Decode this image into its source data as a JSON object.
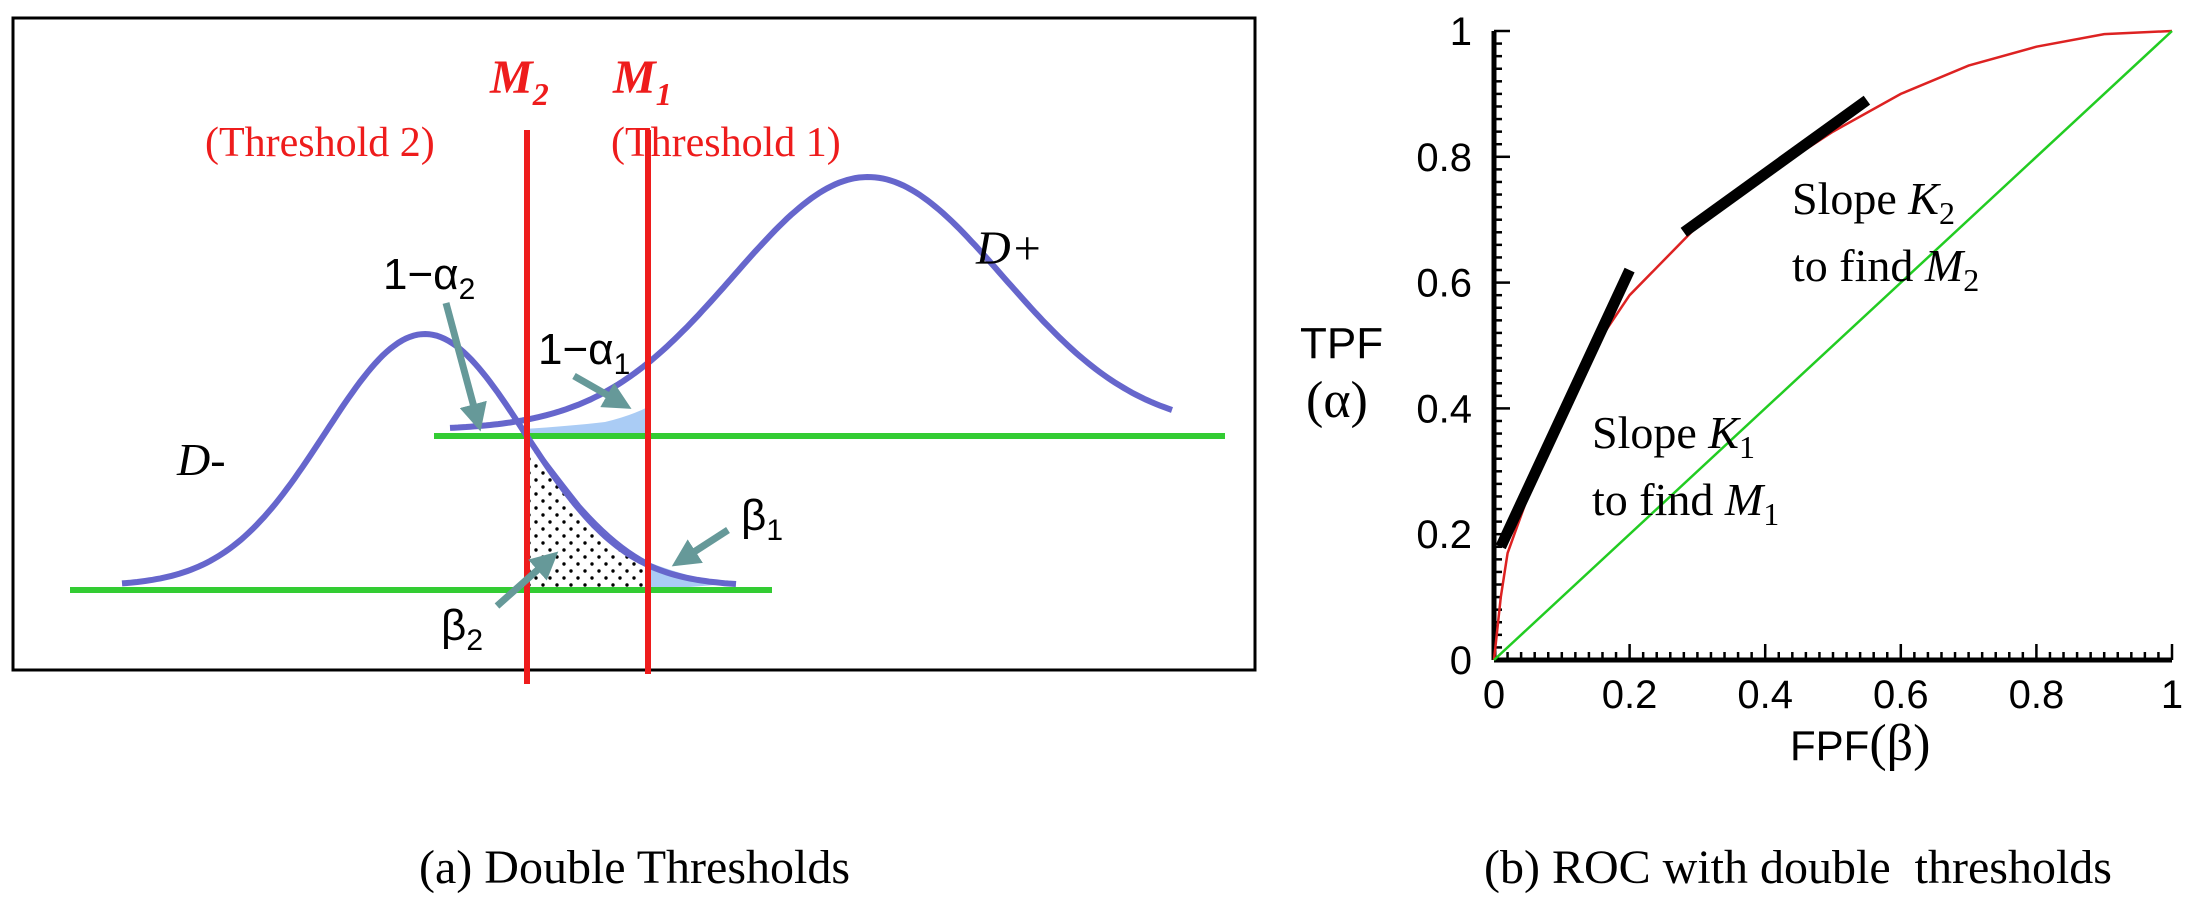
{
  "colors": {
    "curve": "#6666cc",
    "baseline": "#33cc33",
    "threshold": "#ee1c1c",
    "arrow": "#669999",
    "shade": "#aaccf5",
    "roc": "#dd2222",
    "diag": "#22cc22"
  },
  "panel_a": {
    "m2_main": "M",
    "m2_sub": "2",
    "m1_main": "M",
    "m1_sub": "1",
    "threshold2": "(Threshold 2)",
    "threshold1": "(Threshold 1)",
    "d_plus": "D+",
    "d_minus": "D-",
    "alpha2_prefix": "1−α",
    "alpha2_sub": "2",
    "alpha1_prefix": "1−α",
    "alpha1_sub": "1",
    "beta1_main": "β",
    "beta1_sub": "1",
    "beta2_main": "β",
    "beta2_sub": "2",
    "caption": "(a) Double Thresholds"
  },
  "panel_b": {
    "ylabel_line1": "TPF",
    "ylabel_line2": "(α)",
    "xlabel_a": "FPF",
    "xlabel_b": "(β)",
    "slope1_a": "Slope ",
    "slope1_k": "K",
    "slope1_sub": "1",
    "slope1_b": "to find ",
    "slope1_m": "M",
    "slope1_msub": "1",
    "slope2_a": "Slope ",
    "slope2_k": "K",
    "slope2_sub": "2",
    "slope2_b": "to find ",
    "slope2_m": "M",
    "slope2_msub": "2",
    "caption": "(b) ROC with double  thresholds"
  },
  "chart_data": {
    "type": "line",
    "xlabel": "FPF(β)",
    "ylabel": "TPF (α)",
    "xlim": [
      0,
      1
    ],
    "ylim": [
      0,
      1
    ],
    "x_ticks": [
      "0",
      "0.2",
      "0.4",
      "0.6",
      "0.8",
      "1"
    ],
    "y_ticks": [
      "0",
      "0.2",
      "0.4",
      "0.6",
      "0.8",
      "1"
    ],
    "grid": false,
    "series": [
      {
        "x": [
          0,
          0.01,
          0.02,
          0.05,
          0.1,
          0.15,
          0.2,
          0.3,
          0.4,
          0.5,
          0.6,
          0.7,
          0.8,
          0.9,
          1.0
        ],
        "y": [
          0,
          0.1,
          0.17,
          0.26,
          0.4,
          0.5,
          0.58,
          0.69,
          0.77,
          0.84,
          0.9,
          0.945,
          0.975,
          0.995,
          1.0
        ]
      },
      {
        "x": [
          0,
          1
        ],
        "y": [
          0,
          1
        ]
      }
    ],
    "tangents": [
      {
        "label": "Slope K1",
        "x": [
          0.01,
          0.2
        ],
        "y": [
          0.18,
          0.62
        ]
      },
      {
        "label": "Slope K2",
        "x": [
          0.28,
          0.55
        ],
        "y": [
          0.68,
          0.89
        ]
      }
    ]
  }
}
